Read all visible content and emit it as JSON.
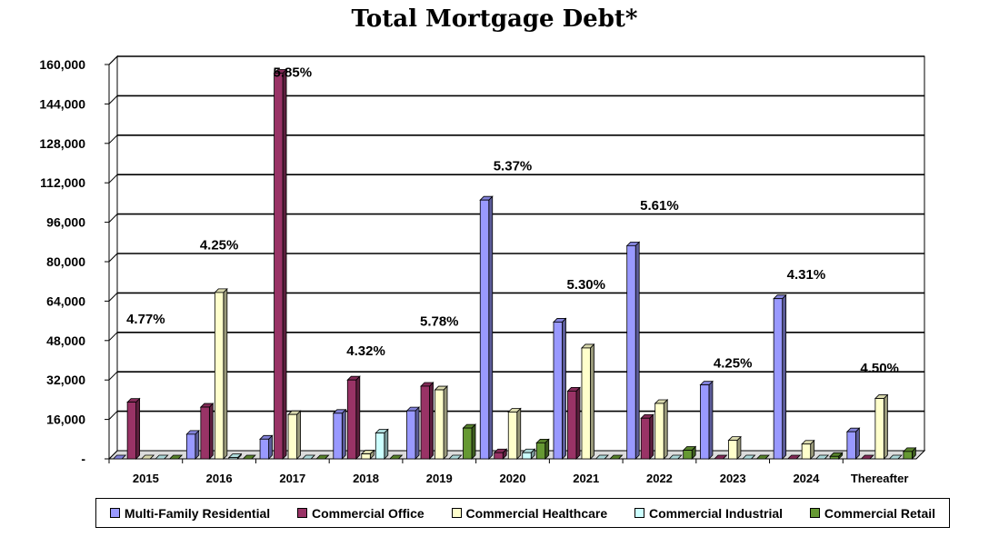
{
  "chart_data": {
    "type": "bar",
    "title": "Total Mortgage Debt*",
    "categories": [
      "2015",
      "2016",
      "2017",
      "2018",
      "2019",
      "2020",
      "2021",
      "2022",
      "2023",
      "2024",
      "Thereafter"
    ],
    "ylim": [
      0,
      160000
    ],
    "yticks": [
      0,
      16000,
      32000,
      48000,
      64000,
      80000,
      96000,
      112000,
      128000,
      144000,
      160000
    ],
    "ytick_labels": [
      "-",
      "16,000",
      "32,000",
      "48,000",
      "64,000",
      "80,000",
      "96,000",
      "112,000",
      "128,000",
      "144,000",
      "160,000"
    ],
    "grid": true,
    "legend_position": "bottom",
    "series": [
      {
        "name": "Multi-Family Residential",
        "color": "#9999ff",
        "values": [
          0,
          10000,
          8000,
          18500,
          19500,
          105000,
          55500,
          86500,
          30000,
          65000,
          11000
        ]
      },
      {
        "name": "Commercial Office",
        "color": "#993366",
        "values": [
          23000,
          21000,
          156500,
          32000,
          29500,
          2500,
          27500,
          16500,
          0,
          0,
          0
        ]
      },
      {
        "name": "Commercial Healthcare",
        "color": "#ffffcc",
        "values": [
          0,
          67500,
          18000,
          2000,
          28000,
          19000,
          45000,
          22500,
          7500,
          6000,
          24500
        ]
      },
      {
        "name": "Commercial Industrial",
        "color": "#ccffff",
        "values": [
          0,
          500,
          0,
          10500,
          0,
          2500,
          0,
          0,
          0,
          0,
          0
        ]
      },
      {
        "name": "Commercial Retail",
        "color": "#669933",
        "values": [
          0,
          0,
          0,
          0,
          12500,
          6500,
          0,
          3500,
          0,
          1000,
          3000
        ]
      }
    ],
    "annotations": [
      {
        "category": "2015",
        "text": "4.77%",
        "y": 55000
      },
      {
        "category": "2016",
        "text": "4.25%",
        "y": 85000
      },
      {
        "category": "2017",
        "text": "5.85%",
        "y": 155000
      },
      {
        "category": "2018",
        "text": "4.32%",
        "y": 42000
      },
      {
        "category": "2019",
        "text": "5.78%",
        "y": 54000
      },
      {
        "category": "2020",
        "text": "5.37%",
        "y": 117000
      },
      {
        "category": "2021",
        "text": "5.30%",
        "y": 69000
      },
      {
        "category": "2022",
        "text": "5.61%",
        "y": 101000
      },
      {
        "category": "2023",
        "text": "4.25%",
        "y": 37000
      },
      {
        "category": "2024",
        "text": "4.31%",
        "y": 73000
      },
      {
        "category": "Thereafter",
        "text": "4.50%",
        "y": 35000
      }
    ]
  }
}
